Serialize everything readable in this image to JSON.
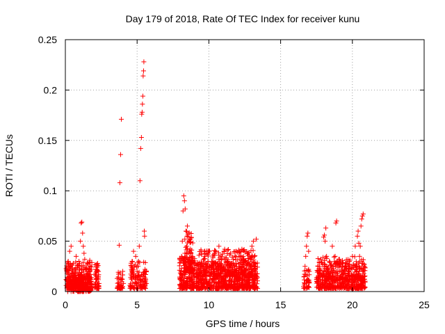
{
  "chart_data": {
    "type": "scatter",
    "title": "Day 179 of 2018, Rate Of TEC Index for receiver kunu",
    "xlabel": "GPS time / hours",
    "ylabel": "ROTI / TECUs",
    "xlim": [
      0,
      25
    ],
    "ylim": [
      0,
      0.25
    ],
    "xticks": [
      0,
      5,
      10,
      15,
      20,
      25
    ],
    "xtick_labels": [
      "0",
      "5",
      "10",
      "15",
      "20",
      "25"
    ],
    "yticks": [
      0,
      0.05,
      0.1,
      0.15,
      0.2,
      0.25
    ],
    "ytick_labels": [
      "0",
      "0.05",
      "0.1",
      "0.15",
      "0.2",
      "0.25"
    ],
    "grid": true,
    "marker": "+",
    "color": "#ff0000",
    "series": [
      {
        "name": "ROTI",
        "points": [
          [
            0.05,
            0.012
          ],
          [
            0.1,
            0.02
          ],
          [
            0.15,
            0.008
          ],
          [
            0.2,
            0.03
          ],
          [
            0.25,
            0.015
          ],
          [
            0.3,
            0.04
          ],
          [
            0.35,
            0.025
          ],
          [
            0.4,
            0.045
          ],
          [
            0.45,
            0.01
          ],
          [
            0.5,
            0.018
          ],
          [
            0.55,
            0.028
          ],
          [
            0.6,
            0.006
          ],
          [
            0.65,
            0.022
          ],
          [
            0.7,
            0.014
          ],
          [
            0.75,
            0.035
          ],
          [
            0.8,
            0.009
          ],
          [
            0.85,
            0.026
          ],
          [
            0.9,
            0.016
          ],
          [
            0.95,
            0.03
          ],
          [
            1.0,
            0.011
          ],
          [
            1.05,
            0.05
          ],
          [
            1.1,
            0.068
          ],
          [
            1.15,
            0.069
          ],
          [
            1.2,
            0.058
          ],
          [
            1.25,
            0.045
          ],
          [
            1.3,
            0.038
          ],
          [
            1.35,
            0.032
          ],
          [
            1.4,
            0.022
          ],
          [
            1.45,
            0.015
          ],
          [
            1.5,
            0.027
          ],
          [
            1.55,
            0.012
          ],
          [
            1.6,
            0.02
          ],
          [
            1.65,
            0.009
          ],
          [
            1.7,
            0.031
          ],
          [
            1.75,
            0.017
          ],
          [
            2.1,
            0.005
          ],
          [
            2.15,
            0.012
          ],
          [
            2.2,
            0.02
          ],
          [
            2.25,
            0.028
          ],
          [
            2.3,
            0.015
          ],
          [
            2.35,
            0.008
          ],
          [
            3.7,
            0.004
          ],
          [
            3.75,
            0.046
          ],
          [
            3.8,
            0.108
          ],
          [
            3.85,
            0.136
          ],
          [
            3.9,
            0.171
          ],
          [
            3.95,
            0.012
          ],
          [
            4.0,
            0.02
          ],
          [
            4.05,
            0.008
          ],
          [
            4.5,
            0.006
          ],
          [
            4.55,
            0.014
          ],
          [
            4.6,
            0.022
          ],
          [
            4.65,
            0.03
          ],
          [
            4.7,
            0.018
          ],
          [
            4.75,
            0.04
          ],
          [
            4.8,
            0.025
          ],
          [
            4.85,
            0.012
          ],
          [
            4.9,
            0.035
          ],
          [
            4.95,
            0.008
          ],
          [
            5.0,
            0.02
          ],
          [
            5.05,
            0.015
          ],
          [
            5.1,
            0.03
          ],
          [
            5.15,
            0.045
          ],
          [
            5.2,
            0.11
          ],
          [
            5.25,
            0.142
          ],
          [
            5.3,
            0.153
          ],
          [
            5.32,
            0.176
          ],
          [
            5.35,
            0.178
          ],
          [
            5.37,
            0.186
          ],
          [
            5.4,
            0.194
          ],
          [
            5.42,
            0.214
          ],
          [
            5.45,
            0.219
          ],
          [
            5.47,
            0.228
          ],
          [
            5.5,
            0.06
          ],
          [
            5.52,
            0.055
          ],
          [
            5.55,
            0.022
          ],
          [
            5.6,
            0.012
          ],
          [
            5.65,
            0.008
          ],
          [
            8.0,
            0.012
          ],
          [
            8.05,
            0.02
          ],
          [
            8.1,
            0.035
          ],
          [
            8.15,
            0.05
          ],
          [
            8.2,
            0.08
          ],
          [
            8.25,
            0.095
          ],
          [
            8.3,
            0.09
          ],
          [
            8.35,
            0.082
          ],
          [
            8.4,
            0.06
          ],
          [
            8.45,
            0.045
          ],
          [
            8.5,
            0.065
          ],
          [
            8.55,
            0.058
          ],
          [
            8.6,
            0.05
          ],
          [
            8.65,
            0.04
          ],
          [
            8.7,
            0.03
          ],
          [
            8.75,
            0.025
          ],
          [
            8.8,
            0.018
          ],
          [
            8.85,
            0.012
          ],
          [
            8.9,
            0.022
          ],
          [
            8.95,
            0.015
          ],
          [
            9.0,
            0.008
          ],
          [
            9.2,
            0.01
          ],
          [
            9.3,
            0.02
          ],
          [
            9.4,
            0.015
          ],
          [
            9.5,
            0.028
          ],
          [
            9.6,
            0.012
          ],
          [
            9.7,
            0.035
          ],
          [
            9.8,
            0.018
          ],
          [
            9.9,
            0.025
          ],
          [
            10.0,
            0.04
          ],
          [
            10.1,
            0.015
          ],
          [
            10.2,
            0.03
          ],
          [
            10.3,
            0.022
          ],
          [
            10.4,
            0.038
          ],
          [
            10.5,
            0.012
          ],
          [
            10.6,
            0.028
          ],
          [
            10.7,
            0.045
          ],
          [
            10.8,
            0.018
          ],
          [
            10.9,
            0.035
          ],
          [
            11.0,
            0.02
          ],
          [
            11.1,
            0.042
          ],
          [
            11.2,
            0.015
          ],
          [
            11.3,
            0.03
          ],
          [
            11.4,
            0.025
          ],
          [
            11.5,
            0.038
          ],
          [
            11.6,
            0.01
          ],
          [
            11.7,
            0.032
          ],
          [
            11.8,
            0.02
          ],
          [
            11.9,
            0.04
          ],
          [
            12.0,
            0.015
          ],
          [
            12.1,
            0.035
          ],
          [
            12.2,
            0.025
          ],
          [
            12.3,
            0.042
          ],
          [
            12.4,
            0.012
          ],
          [
            12.5,
            0.03
          ],
          [
            12.6,
            0.022
          ],
          [
            12.7,
            0.038
          ],
          [
            12.8,
            0.018
          ],
          [
            12.9,
            0.032
          ],
          [
            13.0,
            0.045
          ],
          [
            13.1,
            0.05
          ],
          [
            13.2,
            0.025
          ],
          [
            13.3,
            0.052
          ],
          [
            13.35,
            0.015
          ],
          [
            16.6,
            0.005
          ],
          [
            16.65,
            0.015
          ],
          [
            16.7,
            0.025
          ],
          [
            16.75,
            0.035
          ],
          [
            16.8,
            0.045
          ],
          [
            16.85,
            0.055
          ],
          [
            16.9,
            0.058
          ],
          [
            16.95,
            0.04
          ],
          [
            17.0,
            0.02
          ],
          [
            17.5,
            0.012
          ],
          [
            17.6,
            0.025
          ],
          [
            17.7,
            0.018
          ],
          [
            17.8,
            0.032
          ],
          [
            17.9,
            0.015
          ],
          [
            18.0,
            0.054
          ],
          [
            18.05,
            0.056
          ],
          [
            18.1,
            0.05
          ],
          [
            18.15,
            0.063
          ],
          [
            18.2,
            0.035
          ],
          [
            18.3,
            0.022
          ],
          [
            18.4,
            0.03
          ],
          [
            18.5,
            0.015
          ],
          [
            18.6,
            0.045
          ],
          [
            18.7,
            0.025
          ],
          [
            18.8,
            0.035
          ],
          [
            18.85,
            0.068
          ],
          [
            18.9,
            0.07
          ],
          [
            19.0,
            0.02
          ],
          [
            19.1,
            0.032
          ],
          [
            19.2,
            0.015
          ],
          [
            19.3,
            0.028
          ],
          [
            19.4,
            0.018
          ],
          [
            19.5,
            0.025
          ],
          [
            19.6,
            0.012
          ],
          [
            19.7,
            0.02
          ],
          [
            19.8,
            0.03
          ],
          [
            19.9,
            0.015
          ],
          [
            20.0,
            0.035
          ],
          [
            20.1,
            0.025
          ],
          [
            20.2,
            0.045
          ],
          [
            20.3,
            0.02
          ],
          [
            20.35,
            0.055
          ],
          [
            20.4,
            0.06
          ],
          [
            20.45,
            0.048
          ],
          [
            20.5,
            0.035
          ],
          [
            20.55,
            0.045
          ],
          [
            20.6,
            0.065
          ],
          [
            20.65,
            0.072
          ],
          [
            20.7,
            0.075
          ],
          [
            20.75,
            0.077
          ],
          [
            20.8,
            0.025
          ],
          [
            20.85,
            0.015
          ]
        ],
        "clusters": [
          {
            "x": [
              0.05,
              1.85
            ],
            "y": [
              0.003,
              0.03
            ],
            "n": 260
          },
          {
            "x": [
              0.15,
              1.8
            ],
            "y": [
              0.0,
              0.018
            ],
            "n": 180
          },
          {
            "x": [
              2.05,
              2.35
            ],
            "y": [
              0.003,
              0.028
            ],
            "n": 45
          },
          {
            "x": [
              3.6,
              4.0
            ],
            "y": [
              0.003,
              0.02
            ],
            "n": 40
          },
          {
            "x": [
              4.5,
              5.65
            ],
            "y": [
              0.003,
              0.03
            ],
            "n": 110
          },
          {
            "x": [
              7.95,
              9.05
            ],
            "y": [
              0.003,
              0.035
            ],
            "n": 180
          },
          {
            "x": [
              8.3,
              8.9
            ],
            "y": [
              0.02,
              0.06
            ],
            "n": 90
          },
          {
            "x": [
              9.1,
              13.4
            ],
            "y": [
              0.003,
              0.03
            ],
            "n": 650
          },
          {
            "x": [
              9.3,
              13.3
            ],
            "y": [
              0.015,
              0.042
            ],
            "n": 260
          },
          {
            "x": [
              16.6,
              17.0
            ],
            "y": [
              0.003,
              0.022
            ],
            "n": 40
          },
          {
            "x": [
              17.5,
              20.9
            ],
            "y": [
              0.003,
              0.03
            ],
            "n": 420
          },
          {
            "x": [
              17.6,
              20.8
            ],
            "y": [
              0.012,
              0.035
            ],
            "n": 140
          }
        ]
      }
    ]
  }
}
